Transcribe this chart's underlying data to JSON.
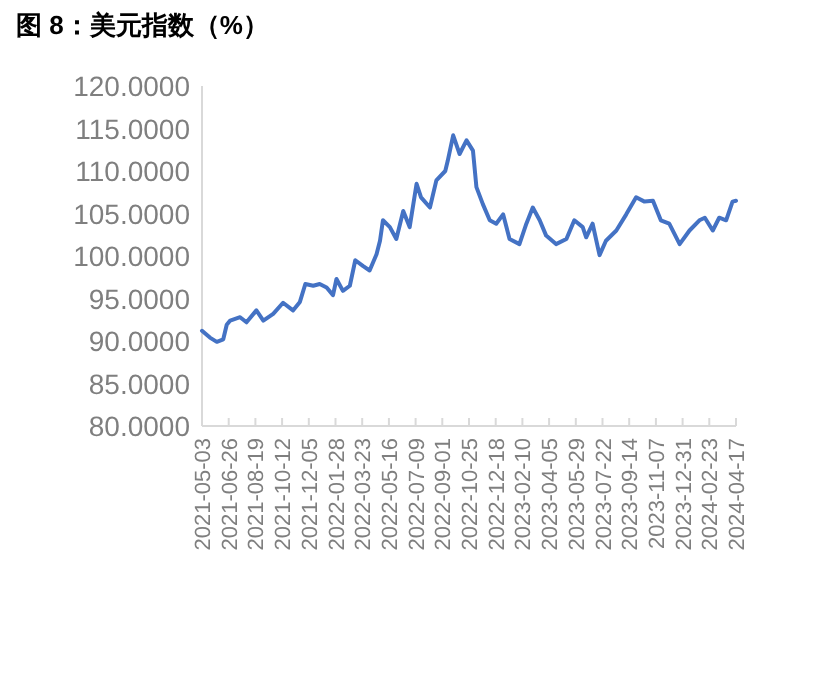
{
  "chart_data": {
    "type": "line",
    "title": "图 8：美元指数（%）",
    "x": [
      "2021-05-03",
      "2021-05-19",
      "2021-06-02",
      "2021-06-15",
      "2021-06-22",
      "2021-06-29",
      "2021-07-19",
      "2021-08-01",
      "2021-08-21",
      "2021-09-04",
      "2021-09-24",
      "2021-10-14",
      "2021-11-03",
      "2021-11-17",
      "2021-11-28",
      "2021-12-14",
      "2021-12-27",
      "2022-01-10",
      "2022-01-23",
      "2022-01-30",
      "2022-02-12",
      "2022-02-26",
      "2022-03-09",
      "2022-03-25",
      "2022-04-07",
      "2022-04-21",
      "2022-04-28",
      "2022-05-04",
      "2022-05-18",
      "2022-05-31",
      "2022-06-14",
      "2022-06-27",
      "2022-07-11",
      "2022-07-20",
      "2022-08-07",
      "2022-08-20",
      "2022-09-07",
      "2022-09-12",
      "2022-09-23",
      "2022-10-06",
      "2022-10-20",
      "2022-11-02",
      "2022-11-09",
      "2022-11-22",
      "2022-12-06",
      "2022-12-19",
      "2023-01-02",
      "2023-01-15",
      "2023-02-04",
      "2023-02-18",
      "2023-03-03",
      "2023-03-17",
      "2023-03-30",
      "2023-04-19",
      "2023-05-10",
      "2023-05-26",
      "2023-06-12",
      "2023-06-19",
      "2023-07-02",
      "2023-07-16",
      "2023-07-29",
      "2023-08-19",
      "2023-09-08",
      "2023-09-28",
      "2023-10-15",
      "2023-11-01",
      "2023-11-17",
      "2023-12-04",
      "2023-12-25",
      "2024-01-14",
      "2024-02-03",
      "2024-02-14",
      "2024-03-01",
      "2024-03-14",
      "2024-03-28",
      "2024-04-10",
      "2024-04-17"
    ],
    "series": [
      {
        "color": "#4472c4",
        "values": [
          91.2,
          90.4,
          89.9,
          90.2,
          91.9,
          92.4,
          92.8,
          92.2,
          93.6,
          92.4,
          93.2,
          94.5,
          93.6,
          94.6,
          96.7,
          96.5,
          96.7,
          96.3,
          95.4,
          97.3,
          95.9,
          96.5,
          99.5,
          98.8,
          98.3,
          100.2,
          101.8,
          104.2,
          103.4,
          102.0,
          105.3,
          103.4,
          108.5,
          106.9,
          105.7,
          108.9,
          110.0,
          111.2,
          114.2,
          112.0,
          113.6,
          112.4,
          108.1,
          106.1,
          104.2,
          103.8,
          104.9,
          102.0,
          101.4,
          103.8,
          105.7,
          104.2,
          102.4,
          101.4,
          102.0,
          104.2,
          103.4,
          102.2,
          103.8,
          100.1,
          101.8,
          103.0,
          104.9,
          106.9,
          106.4,
          106.5,
          104.2,
          103.8,
          101.4,
          103.0,
          104.2,
          104.5,
          103.0,
          104.5,
          104.2,
          106.4,
          106.5
        ]
      }
    ],
    "xlim": [
      "2021-05-03",
      "2024-04-17"
    ],
    "xticks": [
      "2021-05-03",
      "2021-06-26",
      "2021-08-19",
      "2021-10-12",
      "2021-12-05",
      "2022-01-28",
      "2022-03-23",
      "2022-05-16",
      "2022-07-09",
      "2022-09-01",
      "2022-10-25",
      "2022-12-18",
      "2023-02-10",
      "2023-04-05",
      "2023-05-29",
      "2023-07-22",
      "2023-09-14",
      "2023-11-07",
      "2023-12-31",
      "2024-02-23",
      "2024-04-17"
    ],
    "ylim": [
      80,
      120
    ],
    "yticks": [
      {
        "value": 80,
        "label": "80.0000"
      },
      {
        "value": 85,
        "label": "85.0000"
      },
      {
        "value": 90,
        "label": "90.0000"
      },
      {
        "value": 95,
        "label": "95.0000"
      },
      {
        "value": 100,
        "label": "100.0000"
      },
      {
        "value": 105,
        "label": "105.0000"
      },
      {
        "value": 110,
        "label": "110.0000"
      },
      {
        "value": 115,
        "label": "115.0000"
      },
      {
        "value": 120,
        "label": "120.0000"
      }
    ],
    "grid": false,
    "marker": "none",
    "line_style": "solid"
  }
}
